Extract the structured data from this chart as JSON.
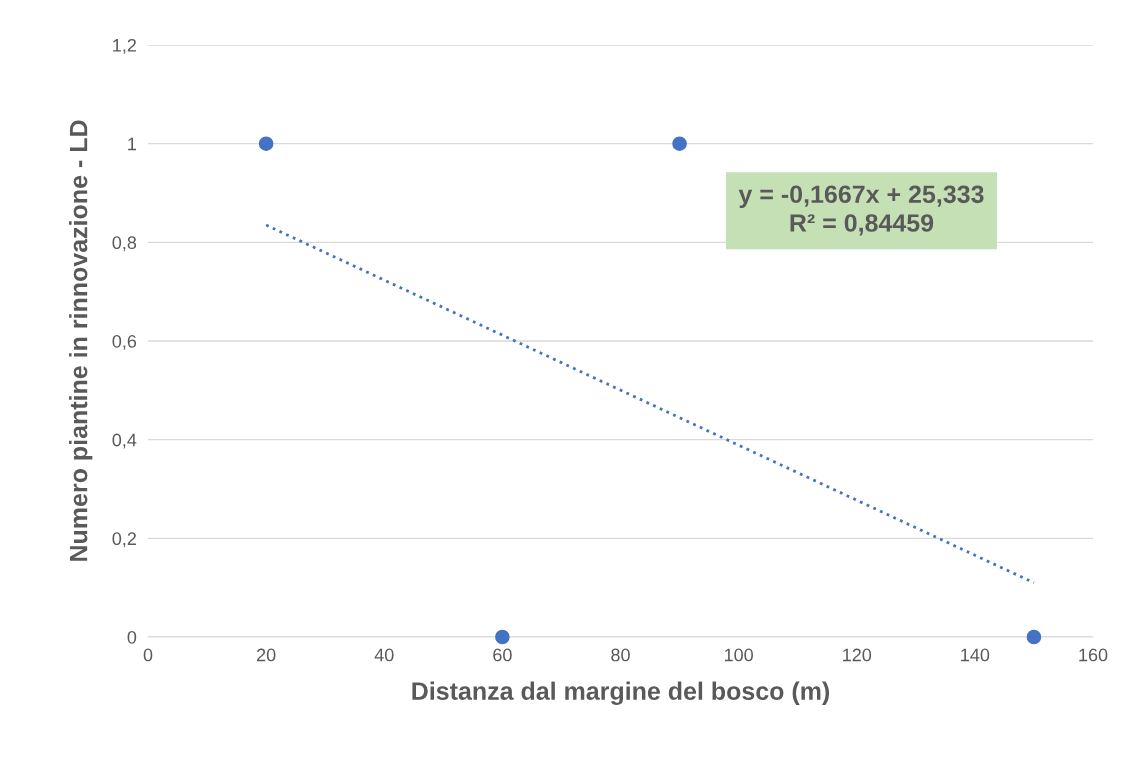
{
  "chart_data": {
    "type": "scatter",
    "xlabel": "Distanza dal margine del bosco (m)",
    "ylabel": "Numero piantine in rinnovazione - LD",
    "series": [
      {
        "color": "#4472c4",
        "x": [
          20,
          60,
          90,
          150
        ],
        "values": [
          1,
          0,
          1,
          0
        ],
        "marker": "circle"
      },
      {
        "type": "line",
        "color": "#4472c4",
        "x": [
          20,
          150
        ],
        "values": [
          0.835,
          0.11
        ],
        "line_style": "dotted",
        "marker": "none"
      }
    ],
    "annotations": [
      "y = -0,1667x + 25,333\nR² = 0,84459"
    ],
    "xlim": [
      0,
      160
    ],
    "xticks": [
      0,
      20,
      40,
      60,
      80,
      100,
      120,
      140,
      160
    ],
    "ylim": [
      0,
      1.2
    ],
    "yticks": [
      0,
      {
        "value": 0.2,
        "label": "0,2"
      },
      {
        "value": 0.4,
        "label": "0,4"
      },
      {
        "value": 0.6,
        "label": "0,6"
      },
      {
        "value": 0.8,
        "label": "0,8"
      },
      1,
      {
        "value": 1.2,
        "label": "1,2"
      }
    ],
    "grid": "y",
    "legend": false
  }
}
